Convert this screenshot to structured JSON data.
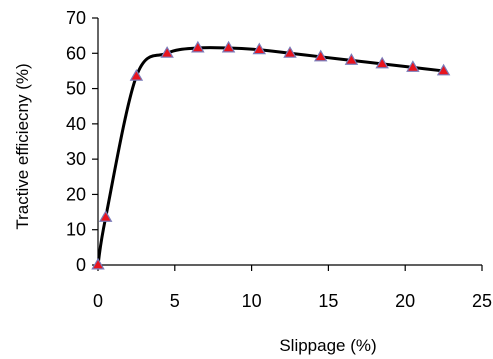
{
  "chart_data": {
    "type": "scatter",
    "title": "",
    "xlabel": "Slippage (%)",
    "ylabel": "Tractive efficiecny (%)",
    "xlim": [
      0,
      25
    ],
    "ylim": [
      0,
      70
    ],
    "xticks": [
      "0",
      "5",
      "10",
      "15",
      "20",
      "25"
    ],
    "yticks": [
      "0",
      "10",
      "20",
      "30",
      "40",
      "50",
      "60",
      "70"
    ],
    "grid": false,
    "legend": "none",
    "series": [
      {
        "marker": "triangle",
        "marker_color": "#e8141e",
        "marker_edge_color": "#7a7ab8",
        "line_color": "#000000",
        "smooth": true,
        "x": [
          0,
          0.5,
          2.5,
          4.5,
          6.5,
          8.5,
          10.5,
          12.5,
          14.5,
          16.5,
          18.5,
          20.5,
          22.5
        ],
        "y": [
          0,
          13.5,
          53.5,
          60,
          61.5,
          61.5,
          61,
          60,
          59,
          58,
          57,
          56,
          55
        ]
      }
    ]
  }
}
